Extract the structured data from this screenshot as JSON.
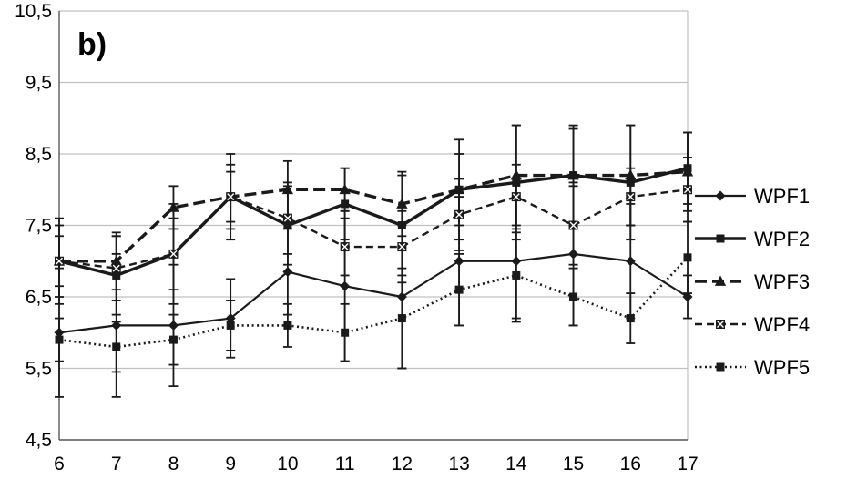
{
  "chart_data": {
    "type": "line",
    "title": "b)",
    "x": [
      6,
      7,
      8,
      9,
      10,
      11,
      12,
      13,
      14,
      15,
      16,
      17
    ],
    "xtick_labels": [
      "6",
      "7",
      "8",
      "9",
      "10",
      "11",
      "12",
      "13",
      "14",
      "15",
      "16",
      "17"
    ],
    "ylim": [
      4.5,
      10.5
    ],
    "ytick_step": 1,
    "ytick_labels": [
      "4,5",
      "5,5",
      "6,5",
      "7,5",
      "8,5",
      "9,5",
      "10,5"
    ],
    "grid": true,
    "legend_position": "right",
    "error_bars": true,
    "series": [
      {
        "name": "WPF1",
        "marker": "diamond",
        "line": "solid",
        "values": [
          6.0,
          6.1,
          6.1,
          6.2,
          6.85,
          6.65,
          6.5,
          7.0,
          7.0,
          7.1,
          7.0,
          6.5
        ],
        "errors": [
          0.9,
          1.0,
          0.85,
          0.55,
          0.6,
          1.05,
          1.0,
          0.9,
          0.85,
          1.0,
          0.8,
          0.3
        ]
      },
      {
        "name": "WPF2",
        "marker": "square",
        "line": "solid",
        "values": [
          7.0,
          6.8,
          7.1,
          7.9,
          7.5,
          7.8,
          7.5,
          8.0,
          8.1,
          8.2,
          8.1,
          8.3
        ],
        "errors": [
          0.6,
          0.55,
          0.7,
          0.6,
          0.55,
          0.5,
          0.7,
          0.7,
          0.8,
          0.7,
          0.8,
          0.5
        ]
      },
      {
        "name": "WPF3",
        "marker": "triangle",
        "line": "dashed",
        "values": [
          7.0,
          7.0,
          7.75,
          7.9,
          8.0,
          8.0,
          7.8,
          8.0,
          8.2,
          8.2,
          8.2,
          8.25
        ],
        "errors": [
          0.35,
          0.4,
          0.3,
          0.35,
          0.4,
          0.3,
          0.45,
          0.5,
          0.7,
          0.65,
          0.7,
          0.55
        ]
      },
      {
        "name": "WPF4",
        "marker": "x-square",
        "line": "dashed-short",
        "values": [
          7.0,
          6.9,
          7.1,
          7.9,
          7.6,
          7.2,
          7.2,
          7.65,
          7.9,
          7.5,
          7.9,
          8.0
        ],
        "errors": [
          0.5,
          0.45,
          0.5,
          0.45,
          0.5,
          0.4,
          0.5,
          0.5,
          0.45,
          0.55,
          0.4,
          0.45
        ]
      },
      {
        "name": "WPF5",
        "marker": "square",
        "line": "dotted",
        "values": [
          5.9,
          5.8,
          5.9,
          6.1,
          6.1,
          6.0,
          6.2,
          6.6,
          6.8,
          6.5,
          6.2,
          7.05
        ],
        "errors": [
          0.3,
          0.35,
          0.35,
          0.35,
          0.3,
          0.4,
          0.7,
          0.5,
          0.6,
          0.4,
          0.35,
          0.5
        ]
      }
    ]
  },
  "colors": {
    "line": "#1a1a1a",
    "grid": "#c0c0c0",
    "axis": "#595959",
    "text": "#000000",
    "background": "#ffffff"
  }
}
